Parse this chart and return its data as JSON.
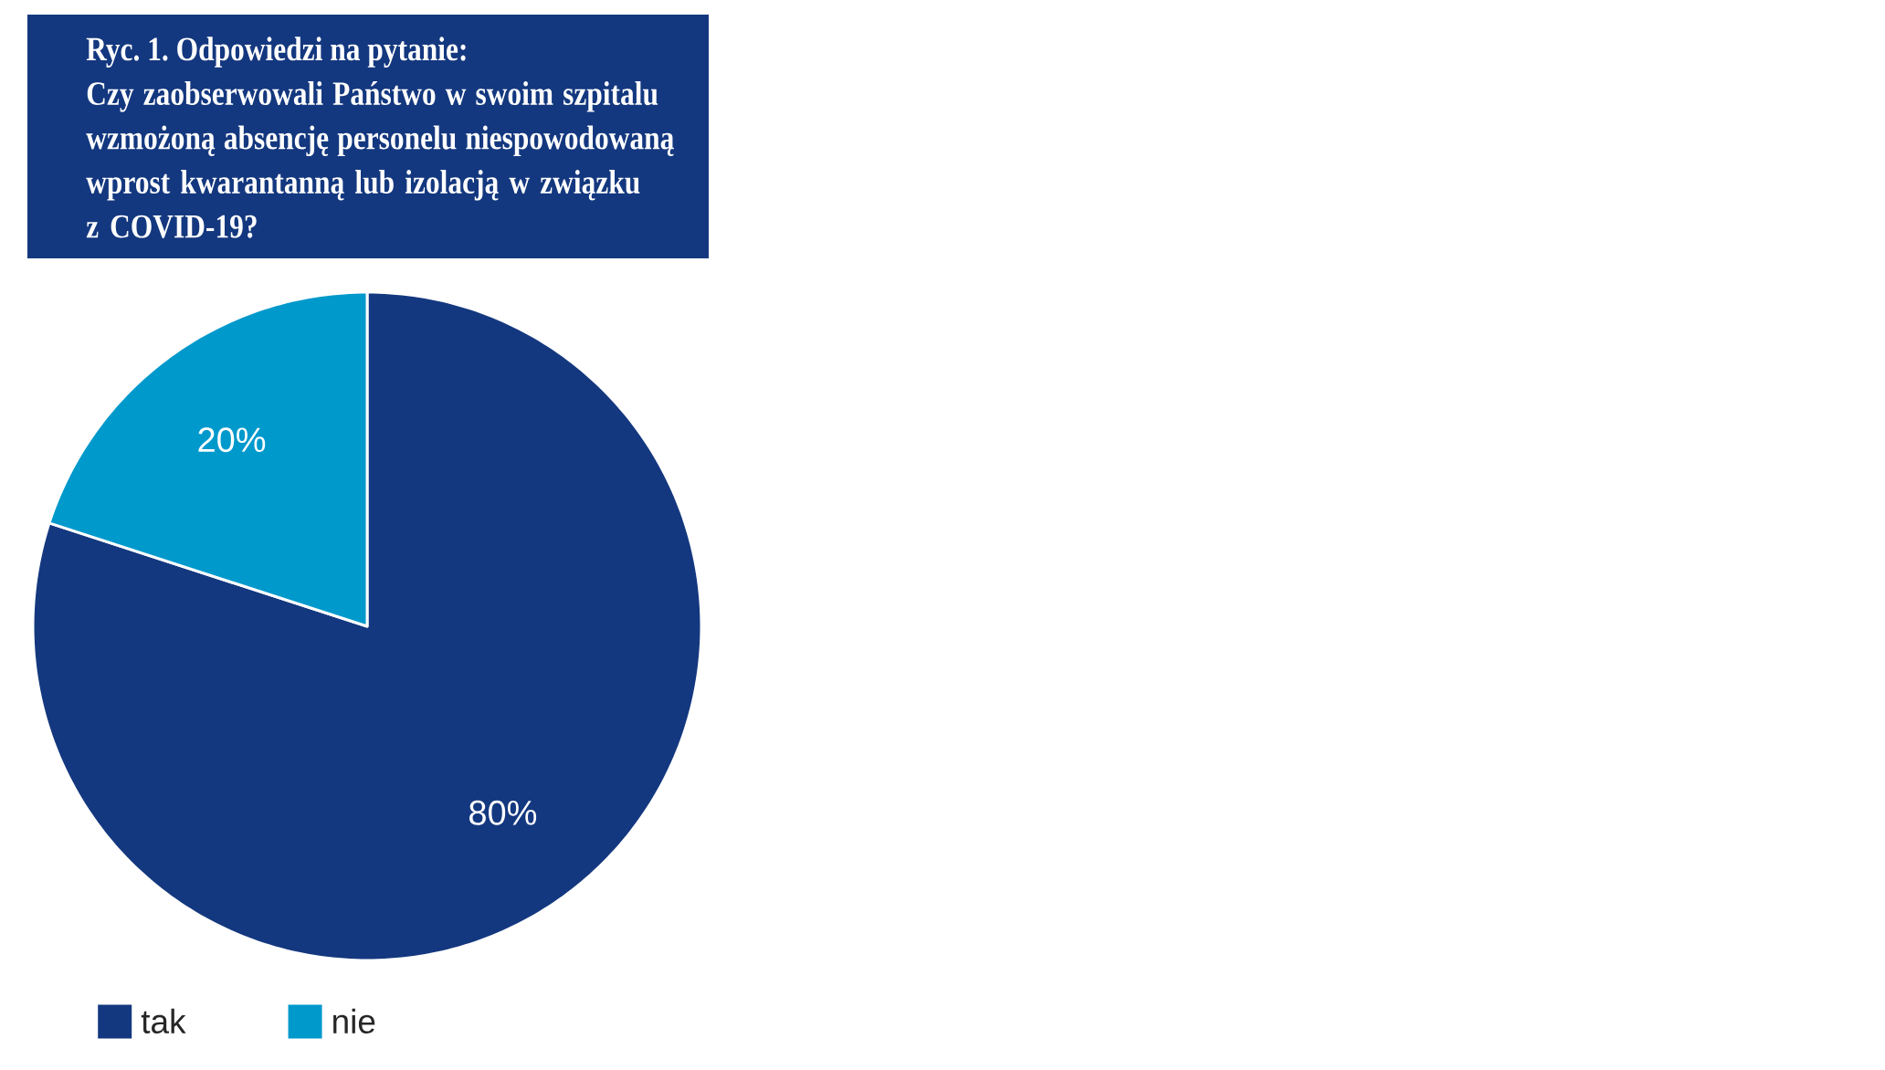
{
  "chart_data": {
    "type": "pie",
    "title": "Ryc. 1. Odpowiedzi na pytanie:",
    "subtitle": "Czy zaobserwowali Państwo w swoim szpitalu wzmożoną absencję personelu niespowodowaną wprost kwarantanną lub izolacją w związku z COVID-19?",
    "categories": [
      "tak",
      "nie"
    ],
    "values": [
      80,
      20
    ],
    "colors": [
      "#14387f",
      "#0099cc"
    ],
    "value_labels": [
      "80%",
      "20%"
    ],
    "legend": "bottom"
  }
}
